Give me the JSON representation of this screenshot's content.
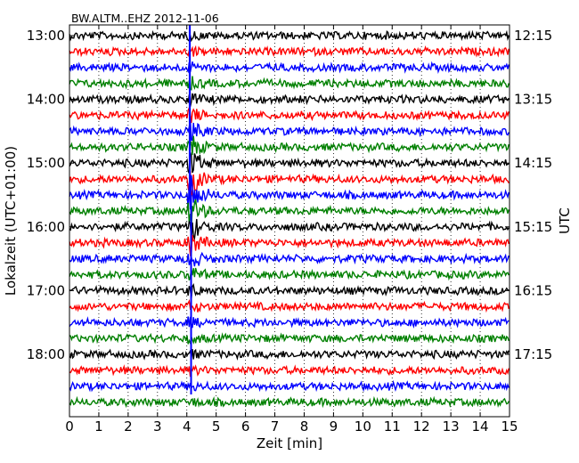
{
  "chart_data": {
    "type": "line",
    "title": "BW.ALTM..EHZ 2012-11-06",
    "xlabel": "Zeit  [min]",
    "ylabel_left": "Lokalzeit (UTC+01:00)",
    "ylabel_right": "UTC",
    "xlim": [
      0,
      15
    ],
    "x_ticks": [
      "0",
      "1",
      "2",
      "3",
      "4",
      "5",
      "6",
      "7",
      "8",
      "9",
      "10",
      "11",
      "12",
      "13",
      "14",
      "15"
    ],
    "grid": "vertical dotted",
    "left_tick_labels": [
      "13:00",
      "14:00",
      "15:00",
      "16:00",
      "17:00",
      "18:00"
    ],
    "right_tick_labels": [
      "12:15",
      "13:15",
      "14:15",
      "15:15",
      "16:15",
      "17:15"
    ],
    "trace_interval_minutes": 15,
    "trace_count": 24,
    "trace_colors": [
      "#000000",
      "#ff0000",
      "#0000ff",
      "#008000"
    ],
    "event": {
      "time_min": 4.1,
      "peak_trace_index": 10
    }
  }
}
